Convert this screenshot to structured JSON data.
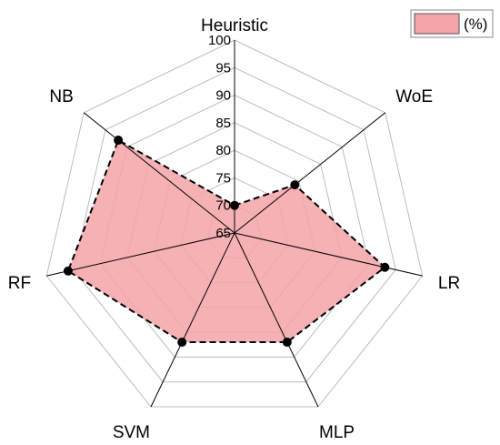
{
  "chart_data": {
    "type": "radar",
    "categories": [
      "Heuristic",
      "WoE",
      "LR",
      "MLP",
      "SVM",
      "RF",
      "NB"
    ],
    "series": [
      {
        "name": "(%)",
        "values": [
          70,
          79,
          93,
          87,
          87,
          96,
          92
        ]
      }
    ],
    "r_range": [
      65,
      100
    ],
    "ticks": [
      65,
      70,
      75,
      80,
      85,
      90,
      95,
      100
    ],
    "tick_labels": [
      "65",
      "70",
      "75",
      "80",
      "85",
      "90",
      "95",
      "100"
    ],
    "grid": true,
    "legend_position": "top-right",
    "colors": {
      "fill": "#f4a3a8",
      "marker": "#000000",
      "outline": "#000000",
      "grid": "#bbbbbb",
      "spoke": "#000000"
    }
  }
}
